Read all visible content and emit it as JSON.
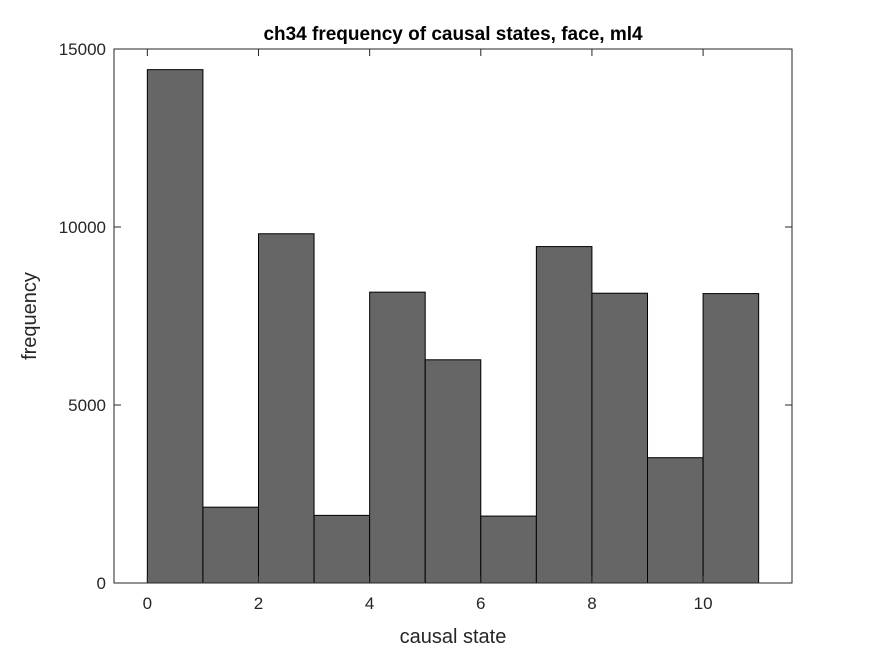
{
  "chart_data": {
    "type": "bar",
    "title": "ch34 frequency of causal states, face, ml4",
    "xlabel": "causal state",
    "ylabel": "frequency",
    "bin_edges": [
      0,
      1,
      2,
      3,
      4,
      5,
      6,
      7,
      8,
      9,
      10,
      11
    ],
    "values": [
      14420,
      2130,
      9810,
      1900,
      8170,
      6270,
      1880,
      9450,
      8140,
      3520,
      8130
    ],
    "xlim": [
      -0.6,
      11.6
    ],
    "ylim": [
      0,
      15000
    ],
    "xticks": [
      "0",
      "2",
      "4",
      "6",
      "8",
      "10"
    ],
    "xtick_values": [
      0,
      2,
      4,
      6,
      8,
      10
    ],
    "yticks": [
      "0",
      "5000",
      "10000",
      "15000"
    ],
    "ytick_values": [
      0,
      5000,
      10000,
      15000
    ],
    "bar_color": "#666666",
    "edge_color": "#000000",
    "grid": false
  }
}
